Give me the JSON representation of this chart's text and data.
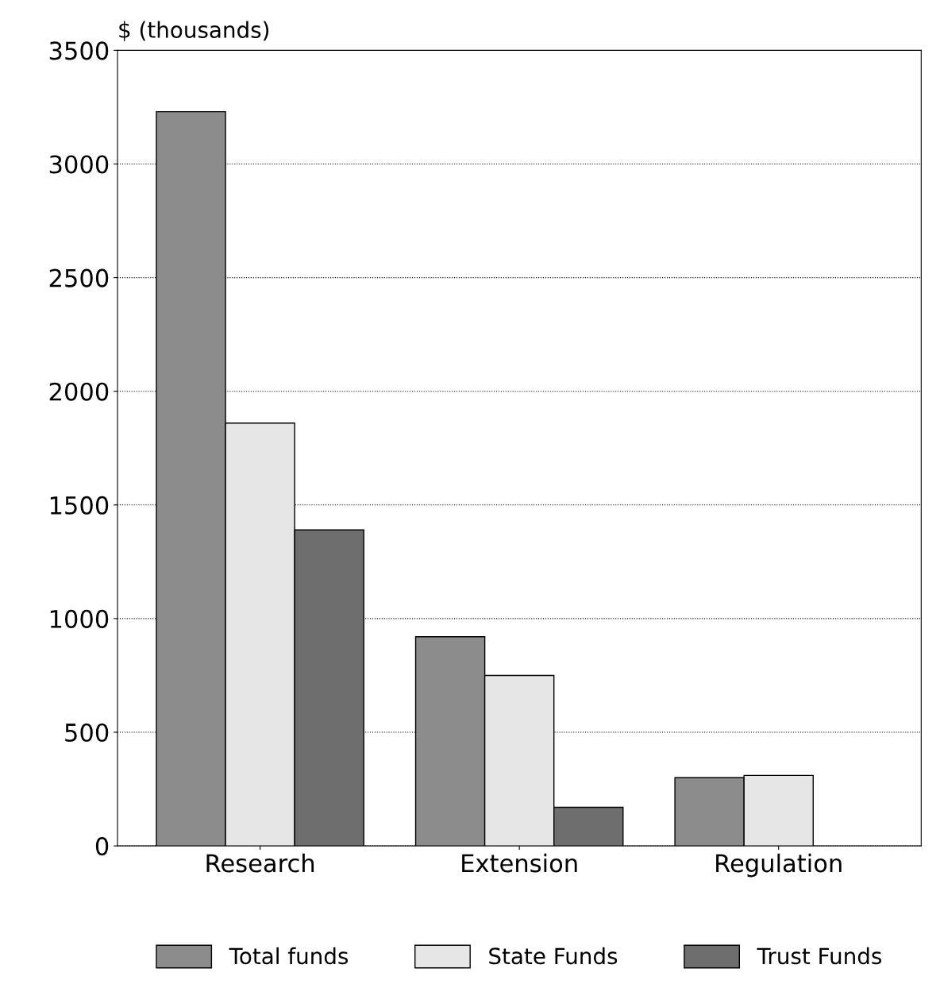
{
  "chart_data": {
    "type": "bar",
    "ylabel": "$ (thousands)",
    "categories": [
      "Research",
      "Extension",
      "Regulation"
    ],
    "series": [
      {
        "name": "Total funds",
        "color": "#8c8c8c",
        "values": [
          3230,
          920,
          300
        ]
      },
      {
        "name": "State Funds",
        "color": "#e6e6e6",
        "values": [
          1860,
          750,
          310
        ]
      },
      {
        "name": "Trust Funds",
        "color": "#6e6e6e",
        "values": [
          1390,
          170,
          null
        ]
      }
    ],
    "ylim": [
      0,
      3500
    ],
    "yticks": [
      0,
      500,
      1000,
      1500,
      2000,
      2500,
      3000,
      3500
    ],
    "grid": "y",
    "legend": "bottom"
  }
}
